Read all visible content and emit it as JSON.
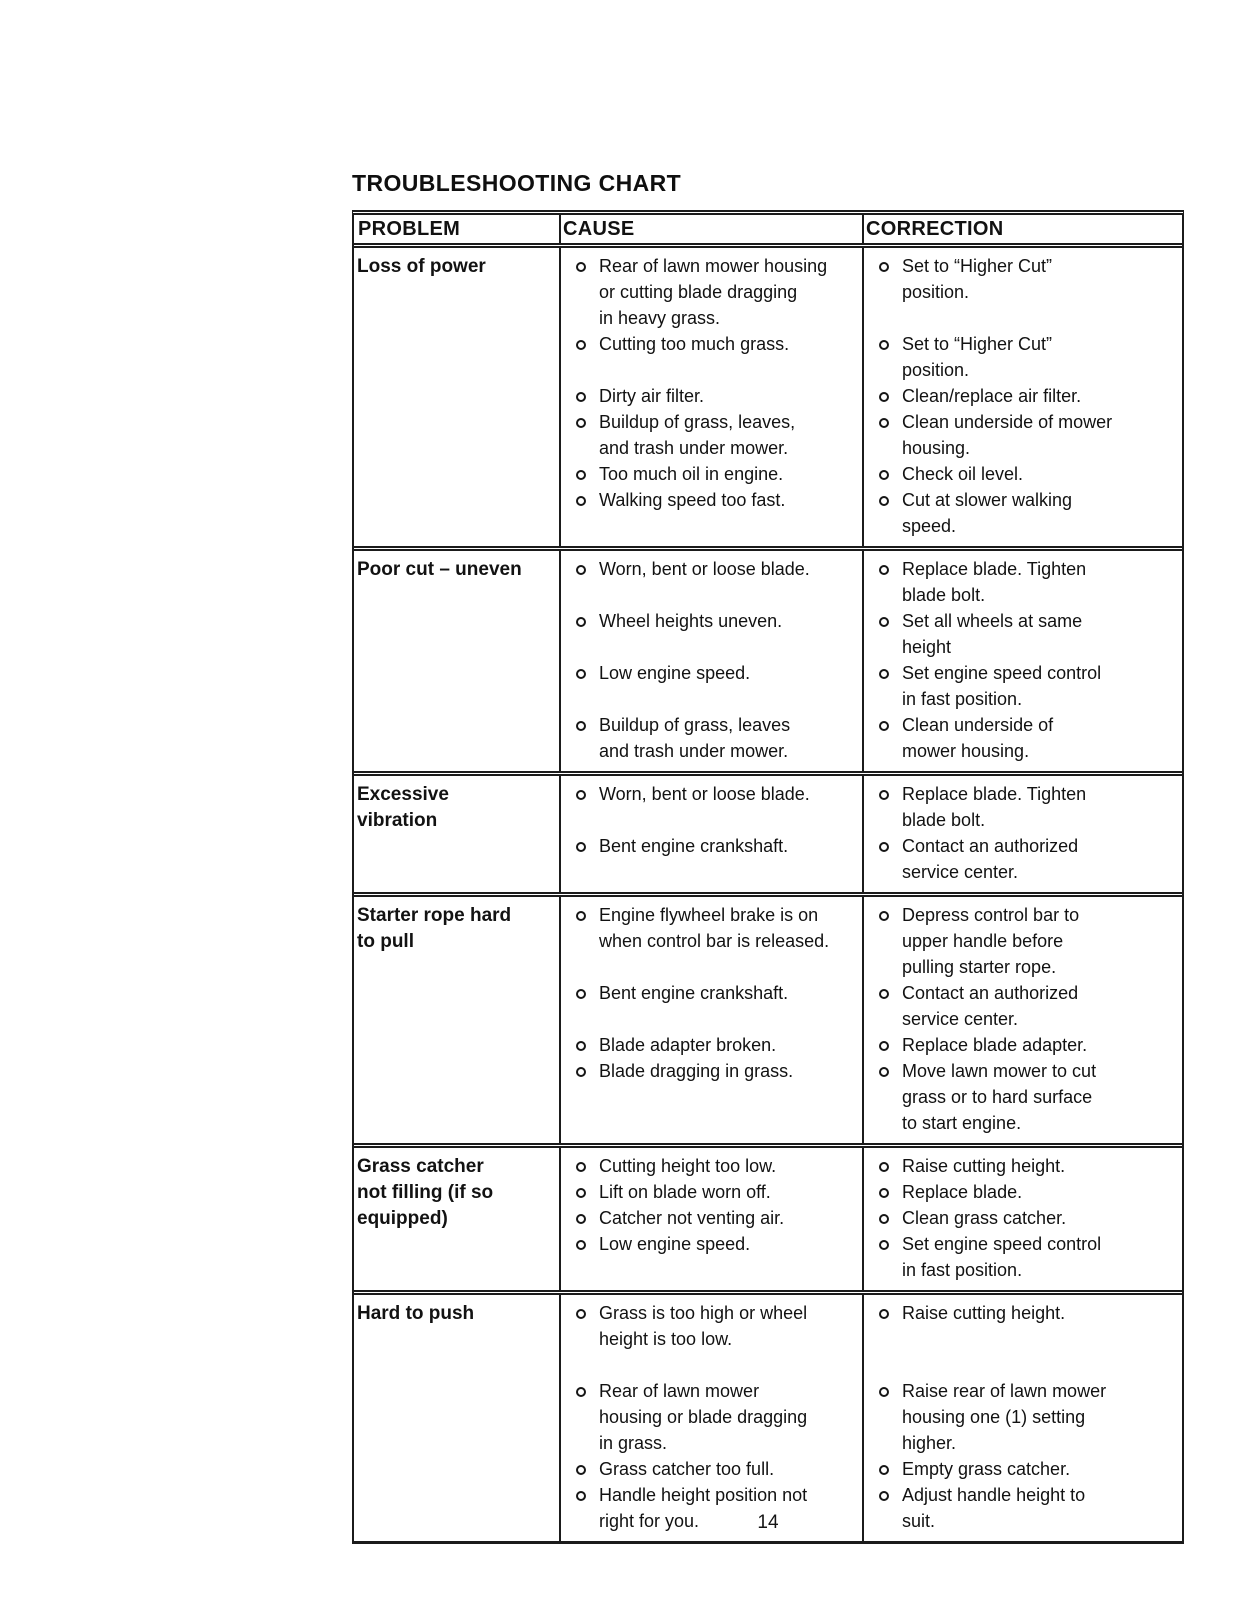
{
  "title": "TROUBLESHOOTING CHART",
  "page_number": "14",
  "table": {
    "headers": {
      "problem": "PROBLEM",
      "cause": "CAUSE",
      "correction": "CORRECTION"
    },
    "rows": [
      {
        "problem": "Loss of power",
        "pairs": [
          {
            "cause": "Rear of lawn mower housing\nor cutting blade dragging\nin heavy grass.",
            "correction": "Set to “Higher Cut”\nposition."
          },
          {
            "cause": "Cutting too much grass.",
            "correction": "Set to “Higher Cut”\nposition."
          },
          {
            "cause": "Dirty air filter.",
            "correction": "Clean/replace air filter."
          },
          {
            "cause": "Buildup of grass, leaves,\nand trash under mower.",
            "correction": "Clean underside of mower\nhousing."
          },
          {
            "cause": "Too much oil in engine.",
            "correction": "Check oil level."
          },
          {
            "cause": "Walking speed too fast.",
            "correction": "Cut at slower walking\nspeed."
          }
        ]
      },
      {
        "problem": "Poor cut – uneven",
        "pairs": [
          {
            "cause": "Worn, bent or loose blade.",
            "correction": "Replace blade. Tighten\nblade bolt."
          },
          {
            "cause": "Wheel heights uneven.",
            "correction": "Set all wheels at same\nheight"
          },
          {
            "cause": "Low engine speed.",
            "correction": "Set engine speed control\nin fast position."
          },
          {
            "cause": "Buildup of grass, leaves\nand trash under mower.",
            "correction": "Clean underside of\nmower housing."
          }
        ]
      },
      {
        "problem": "Excessive\nvibration",
        "pairs": [
          {
            "cause": "Worn, bent or loose blade.",
            "correction": "Replace blade. Tighten\nblade bolt."
          },
          {
            "cause": "Bent engine crankshaft.",
            "correction": "Contact an authorized\nservice center."
          }
        ]
      },
      {
        "problem": "Starter rope hard\nto pull",
        "pairs": [
          {
            "cause": "Engine flywheel brake is on\nwhen control bar is released.",
            "correction": "Depress control bar to\nupper handle before\npulling starter rope."
          },
          {
            "cause": "Bent engine crankshaft.",
            "correction": "Contact an authorized\nservice center."
          },
          {
            "cause": "Blade adapter broken.",
            "correction": "Replace blade adapter."
          },
          {
            "cause": "Blade dragging in grass.",
            "correction": "Move lawn mower to cut\ngrass or to hard surface\nto start engine."
          }
        ]
      },
      {
        "problem": "Grass catcher\nnot filling (if so\nequipped)",
        "pairs": [
          {
            "cause": "Cutting height too low.",
            "correction": "Raise cutting height."
          },
          {
            "cause": "Lift on blade worn off.",
            "correction": "Replace blade."
          },
          {
            "cause": "Catcher not venting air.",
            "correction": "Clean grass catcher."
          },
          {
            "cause": "Low engine speed.",
            "correction": "Set engine speed control\nin fast position."
          }
        ]
      },
      {
        "problem": "Hard to push",
        "pairs": [
          {
            "cause": "Grass is too high or wheel\nheight is too low.",
            "correction": "Raise cutting height."
          },
          {
            "cause": "Rear of lawn mower\nhousing or blade dragging\nin grass.",
            "correction": "Raise rear of lawn mower\nhousing one (1) setting\nhigher."
          },
          {
            "cause": "Grass catcher too full.",
            "correction": "Empty grass catcher."
          },
          {
            "cause": "Handle height position not\nright for you.",
            "correction": "Adjust handle height to\nsuit."
          }
        ]
      }
    ]
  }
}
